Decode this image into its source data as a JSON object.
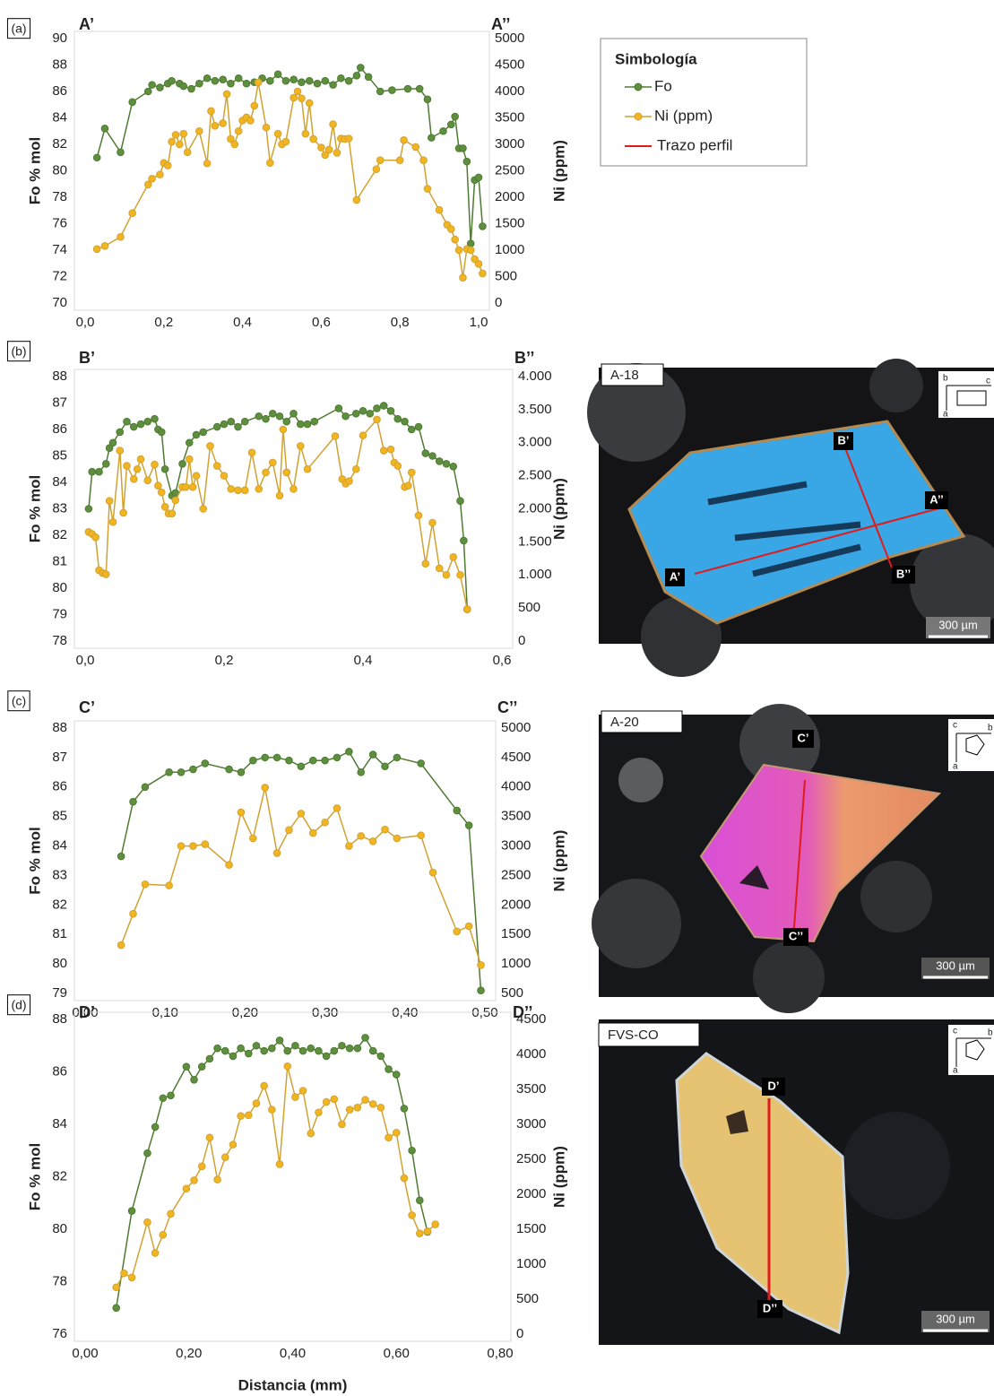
{
  "chart_data": [
    {
      "type": "line",
      "panel": "(a)",
      "left_label": "A’",
      "right_label": "A’’",
      "ylabel": "Fo % mol",
      "y2label": "Ni (ppm)",
      "xlim": [
        0,
        1.0
      ],
      "xticks": [
        {
          "value": 0,
          "label": "0,0"
        },
        {
          "value": 0.2,
          "label": "0,2"
        },
        {
          "value": 0.4,
          "label": "0,4"
        },
        {
          "value": 0.6,
          "label": "0,6"
        },
        {
          "value": 0.8,
          "label": "0,8"
        },
        {
          "value": 1.0,
          "label": "1,0"
        }
      ],
      "ylim": [
        70,
        90
      ],
      "yticks": [
        70,
        72,
        74,
        76,
        78,
        80,
        82,
        84,
        86,
        88,
        90
      ],
      "y2lim": [
        0,
        5000
      ],
      "y2ticks": [
        0,
        500,
        1000,
        1500,
        2000,
        2500,
        3000,
        3500,
        4000,
        4500,
        5000
      ],
      "series": [
        {
          "name": "Fo",
          "color": "#4f7a32",
          "marker": "#5e8f3e",
          "x": [
            0.03,
            0.05,
            0.09,
            0.12,
            0.16,
            0.17,
            0.19,
            0.21,
            0.22,
            0.24,
            0.25,
            0.27,
            0.29,
            0.31,
            0.33,
            0.35,
            0.37,
            0.39,
            0.41,
            0.43,
            0.45,
            0.47,
            0.49,
            0.51,
            0.53,
            0.55,
            0.57,
            0.59,
            0.61,
            0.63,
            0.65,
            0.67,
            0.69,
            0.7,
            0.72,
            0.75,
            0.78,
            0.82,
            0.85,
            0.87,
            0.88,
            0.91,
            0.93,
            0.94,
            0.95,
            0.96,
            0.97,
            0.98,
            0.99,
            1.0,
            1.01
          ],
          "values": [
            81.0,
            83.2,
            81.4,
            85.2,
            86.0,
            86.5,
            86.3,
            86.6,
            86.8,
            86.6,
            86.4,
            86.2,
            86.6,
            87.0,
            86.8,
            86.9,
            86.6,
            87.0,
            86.6,
            86.7,
            87.0,
            86.8,
            87.3,
            86.8,
            86.9,
            86.7,
            86.8,
            86.6,
            86.8,
            86.5,
            87.0,
            86.8,
            87.2,
            87.8,
            87.1,
            86.0,
            86.1,
            86.2,
            86.2,
            85.4,
            82.5,
            83.0,
            83.5,
            84.1,
            81.7,
            81.7,
            80.7,
            74.5,
            79.3,
            79.5,
            75.8
          ]
        },
        {
          "name": "Ni (ppm)",
          "color": "#d0a232",
          "marker": "#f3b51f",
          "axis": "y2",
          "x": [
            0.03,
            0.05,
            0.09,
            0.12,
            0.16,
            0.17,
            0.19,
            0.2,
            0.21,
            0.22,
            0.23,
            0.24,
            0.25,
            0.26,
            0.29,
            0.31,
            0.32,
            0.33,
            0.35,
            0.36,
            0.37,
            0.38,
            0.39,
            0.4,
            0.41,
            0.42,
            0.43,
            0.44,
            0.46,
            0.47,
            0.49,
            0.5,
            0.51,
            0.53,
            0.54,
            0.55,
            0.56,
            0.57,
            0.58,
            0.6,
            0.61,
            0.62,
            0.63,
            0.64,
            0.65,
            0.66,
            0.67,
            0.69,
            0.74,
            0.75,
            0.8,
            0.81,
            0.84,
            0.86,
            0.87,
            0.9,
            0.92,
            0.93,
            0.94,
            0.95,
            0.96,
            0.97,
            0.98,
            0.99,
            1.0,
            1.01
          ],
          "values": [
            1020,
            1080,
            1250,
            1700,
            2240,
            2350,
            2430,
            2650,
            2600,
            3050,
            3180,
            3000,
            3200,
            2850,
            3250,
            2640,
            3630,
            3350,
            3400,
            3950,
            3100,
            3000,
            3250,
            3450,
            3510,
            3450,
            3730,
            4170,
            3320,
            2650,
            3200,
            3000,
            3050,
            3880,
            4000,
            3870,
            3200,
            3780,
            3100,
            2940,
            2800,
            2900,
            3380,
            2840,
            3110,
            3100,
            3110,
            1950,
            2530,
            2700,
            2700,
            3080,
            2950,
            2700,
            2160,
            1760,
            1480,
            1400,
            1200,
            1000,
            480,
            1020,
            1000,
            830,
            740,
            560
          ]
        }
      ]
    },
    {
      "type": "line",
      "panel": "(b)",
      "left_label": "B’",
      "right_label": "B’’",
      "ylabel": "Fo % mol",
      "y2label": "Ni (ppm)",
      "xlim": [
        0,
        0.6
      ],
      "xticks": [
        {
          "value": 0,
          "label": "0,0"
        },
        {
          "value": 0.2,
          "label": "0,2"
        },
        {
          "value": 0.4,
          "label": "0,4"
        },
        {
          "value": 0.6,
          "label": "0,6"
        }
      ],
      "ylim": [
        78,
        88
      ],
      "yticks": [
        78,
        79,
        80,
        81,
        82,
        83,
        84,
        85,
        86,
        87,
        88
      ],
      "y2lim": [
        0,
        4000
      ],
      "y2ticks": [
        0,
        500,
        {
          "value": 1000,
          "label": "1.000"
        },
        {
          "value": 1500,
          "label": "1.500"
        },
        {
          "value": 2000,
          "label": "2.000"
        },
        {
          "value": 2500,
          "label": "2.500"
        },
        {
          "value": 3000,
          "label": "3.000"
        },
        {
          "value": 3500,
          "label": "3.500"
        },
        {
          "value": 4000,
          "label": "4.000"
        }
      ],
      "series": [
        {
          "color": "#4f7a32",
          "marker": "#5e8f3e",
          "x": [
            0.005,
            0.01,
            0.02,
            0.03,
            0.035,
            0.04,
            0.05,
            0.06,
            0.07,
            0.08,
            0.09,
            0.1,
            0.105,
            0.11,
            0.115,
            0.125,
            0.13,
            0.14,
            0.15,
            0.16,
            0.17,
            0.19,
            0.2,
            0.21,
            0.22,
            0.23,
            0.25,
            0.26,
            0.27,
            0.28,
            0.29,
            0.3,
            0.31,
            0.32,
            0.33,
            0.365,
            0.375,
            0.39,
            0.4,
            0.41,
            0.42,
            0.43,
            0.44,
            0.45,
            0.46,
            0.47,
            0.48,
            0.49,
            0.5,
            0.51,
            0.52,
            0.53,
            0.54,
            0.545,
            0.55
          ],
          "values": [
            83.0,
            84.4,
            84.4,
            84.7,
            85.3,
            85.5,
            85.9,
            86.3,
            86.1,
            86.2,
            86.3,
            86.4,
            86.0,
            85.9,
            84.5,
            83.5,
            83.6,
            84.7,
            85.5,
            85.8,
            85.9,
            86.1,
            86.2,
            86.3,
            86.1,
            86.3,
            86.5,
            86.4,
            86.6,
            86.5,
            86.3,
            86.6,
            86.2,
            86.2,
            86.3,
            86.8,
            86.5,
            86.6,
            86.7,
            86.6,
            86.8,
            86.9,
            86.7,
            86.4,
            86.3,
            86.0,
            86.1,
            85.1,
            85.0,
            84.8,
            84.7,
            84.6,
            83.3,
            81.8,
            79.2
          ]
        },
        {
          "color": "#d0a232",
          "marker": "#f3b51f",
          "axis": "y2",
          "x": [
            0.005,
            0.01,
            0.015,
            0.02,
            0.025,
            0.03,
            0.035,
            0.04,
            0.05,
            0.055,
            0.06,
            0.07,
            0.075,
            0.08,
            0.09,
            0.1,
            0.105,
            0.11,
            0.115,
            0.12,
            0.125,
            0.13,
            0.14,
            0.145,
            0.15,
            0.155,
            0.16,
            0.17,
            0.18,
            0.19,
            0.2,
            0.21,
            0.22,
            0.23,
            0.24,
            0.25,
            0.26,
            0.27,
            0.28,
            0.285,
            0.29,
            0.3,
            0.31,
            0.32,
            0.36,
            0.37,
            0.375,
            0.38,
            0.39,
            0.4,
            0.42,
            0.43,
            0.44,
            0.445,
            0.45,
            0.46,
            0.465,
            0.47,
            0.48,
            0.49,
            0.5,
            0.51,
            0.52,
            0.53,
            0.54,
            0.55
          ],
          "values": [
            1650,
            1620,
            1570,
            1070,
            1030,
            1010,
            2120,
            1800,
            2880,
            1940,
            2650,
            2450,
            2600,
            2750,
            2430,
            2670,
            2350,
            2250,
            2030,
            1930,
            1930,
            2130,
            2330,
            2330,
            2750,
            2330,
            2500,
            2000,
            2950,
            2650,
            2500,
            2300,
            2280,
            2280,
            2850,
            2300,
            2550,
            2700,
            2200,
            3200,
            2550,
            2300,
            2950,
            2600,
            3100,
            2450,
            2380,
            2420,
            2600,
            3110,
            3350,
            2880,
            2900,
            2700,
            2650,
            2330,
            2350,
            2550,
            1900,
            1170,
            1790,
            1100,
            1000,
            1270,
            1000,
            480
          ]
        }
      ]
    },
    {
      "type": "line",
      "panel": "(c)",
      "left_label": "C’",
      "right_label": "C’’",
      "ylabel": "Fo % mol",
      "y2label": "Ni (ppm)",
      "xlim": [
        0,
        0.5
      ],
      "xticks": [
        {
          "value": 0,
          "label": "0,00"
        },
        {
          "value": 0.1,
          "label": "0,10"
        },
        {
          "value": 0.2,
          "label": "0,20"
        },
        {
          "value": 0.3,
          "label": "0,30"
        },
        {
          "value": 0.4,
          "label": "0,40"
        },
        {
          "value": 0.5,
          "label": "0,50"
        }
      ],
      "ylim": [
        79,
        88
      ],
      "yticks": [
        79,
        80,
        81,
        82,
        83,
        84,
        85,
        86,
        87,
        88
      ],
      "y2lim": [
        500,
        5000
      ],
      "y2ticks": [
        500,
        1000,
        1500,
        2000,
        2500,
        3000,
        3500,
        4000,
        4500,
        5000
      ],
      "series": [
        {
          "color": "#4f7a32",
          "marker": "#5e8f3e",
          "x": [
            0.045,
            0.06,
            0.075,
            0.105,
            0.12,
            0.135,
            0.15,
            0.18,
            0.195,
            0.21,
            0.225,
            0.24,
            0.255,
            0.27,
            0.285,
            0.3,
            0.315,
            0.33,
            0.345,
            0.36,
            0.375,
            0.39,
            0.42,
            0.465,
            0.48,
            0.495
          ],
          "values": [
            83.65,
            85.5,
            86.0,
            86.5,
            86.5,
            86.6,
            86.8,
            86.6,
            86.5,
            86.9,
            87.0,
            87.0,
            86.9,
            86.7,
            86.9,
            86.9,
            87.0,
            87.2,
            86.5,
            87.1,
            86.7,
            87.0,
            86.8,
            85.2,
            84.7,
            79.1
          ]
        },
        {
          "color": "#d0a232",
          "marker": "#f3b51f",
          "axis": "y2",
          "x": [
            0.045,
            0.06,
            0.075,
            0.105,
            0.12,
            0.135,
            0.15,
            0.18,
            0.195,
            0.21,
            0.225,
            0.24,
            0.255,
            0.27,
            0.285,
            0.3,
            0.315,
            0.33,
            0.345,
            0.36,
            0.375,
            0.39,
            0.42,
            0.435,
            0.465,
            0.48,
            0.495
          ],
          "values": [
            1320,
            1850,
            2350,
            2330,
            3000,
            3000,
            3030,
            2680,
            3570,
            3130,
            3990,
            2880,
            3270,
            3550,
            3220,
            3400,
            3640,
            3000,
            3170,
            3080,
            3280,
            3130,
            3180,
            2550,
            1550,
            1640,
            980
          ]
        }
      ]
    },
    {
      "type": "line",
      "panel": "(d)",
      "left_label": "D’",
      "right_label": "D’’",
      "ylabel": "Fo % mol",
      "y2label": "Ni (ppm)",
      "xlabel": "Distancia (mm)",
      "xlim": [
        0,
        0.8
      ],
      "xticks": [
        {
          "value": 0,
          "label": "0,00"
        },
        {
          "value": 0.2,
          "label": "0,20"
        },
        {
          "value": 0.4,
          "label": "0,40"
        },
        {
          "value": 0.6,
          "label": "0,60"
        },
        {
          "value": 0.8,
          "label": "0,80"
        }
      ],
      "ylim": [
        76,
        88
      ],
      "yticks": [
        76,
        78,
        80,
        82,
        84,
        86,
        88
      ],
      "y2lim": [
        0,
        4500
      ],
      "y2ticks": [
        0,
        500,
        1000,
        1500,
        2000,
        2500,
        3000,
        3500,
        4000,
        4500
      ],
      "series": [
        {
          "color": "#4f7a32",
          "marker": "#5e8f3e",
          "x": [
            0.06,
            0.09,
            0.12,
            0.135,
            0.15,
            0.165,
            0.195,
            0.21,
            0.225,
            0.24,
            0.255,
            0.27,
            0.285,
            0.3,
            0.315,
            0.33,
            0.345,
            0.36,
            0.375,
            0.39,
            0.405,
            0.42,
            0.435,
            0.45,
            0.465,
            0.48,
            0.495,
            0.51,
            0.525,
            0.54,
            0.555,
            0.57,
            0.585,
            0.6,
            0.615,
            0.63,
            0.645,
            0.66
          ],
          "values": [
            77.0,
            80.7,
            82.9,
            83.9,
            85.0,
            85.1,
            86.2,
            85.7,
            86.2,
            86.5,
            86.9,
            86.8,
            86.6,
            86.9,
            86.7,
            87.0,
            86.8,
            86.9,
            87.2,
            86.8,
            87.0,
            86.8,
            86.9,
            86.8,
            86.6,
            86.8,
            87.0,
            86.9,
            86.9,
            87.3,
            86.8,
            86.6,
            86.1,
            85.9,
            84.6,
            83.0,
            81.1,
            79.9
          ]
        },
        {
          "color": "#d0a232",
          "marker": "#f3b51f",
          "axis": "y2",
          "x": [
            0.06,
            0.075,
            0.09,
            0.12,
            0.135,
            0.15,
            0.165,
            0.195,
            0.21,
            0.225,
            0.24,
            0.255,
            0.27,
            0.285,
            0.3,
            0.315,
            0.33,
            0.345,
            0.36,
            0.375,
            0.39,
            0.405,
            0.42,
            0.435,
            0.45,
            0.465,
            0.48,
            0.495,
            0.51,
            0.525,
            0.54,
            0.555,
            0.57,
            0.585,
            0.6,
            0.615,
            0.63,
            0.645,
            0.66,
            0.675
          ],
          "values": [
            670,
            870,
            810,
            1600,
            1160,
            1420,
            1720,
            2080,
            2200,
            2400,
            2810,
            2210,
            2530,
            2710,
            3120,
            3130,
            3300,
            3550,
            3210,
            2430,
            3830,
            3390,
            3480,
            2870,
            3170,
            3320,
            3360,
            3000,
            3210,
            3240,
            3350,
            3290,
            3240,
            2810,
            2880,
            2230,
            1700,
            1440,
            1470,
            1570
          ]
        }
      ]
    }
  ],
  "legend": {
    "title": "Simbología",
    "profile_name": "Trazo perfil",
    "profile_color": "#e01b1b"
  },
  "micrographs": [
    {
      "sample": "A-18",
      "markers": [
        "B’",
        "A’’",
        "A’",
        "B’’"
      ],
      "scale": "300 µm",
      "axes": [
        "b",
        "c",
        "a"
      ]
    },
    {
      "sample": "A-20",
      "markers": [
        "C’",
        "C’’"
      ],
      "scale": "300 µm",
      "axes": [
        "c",
        "b",
        "a"
      ]
    },
    {
      "sample": "FVS-CO",
      "markers": [
        "D’",
        "D’’"
      ],
      "scale": "300 µm",
      "axes": [
        "c",
        "b",
        "a"
      ]
    }
  ]
}
